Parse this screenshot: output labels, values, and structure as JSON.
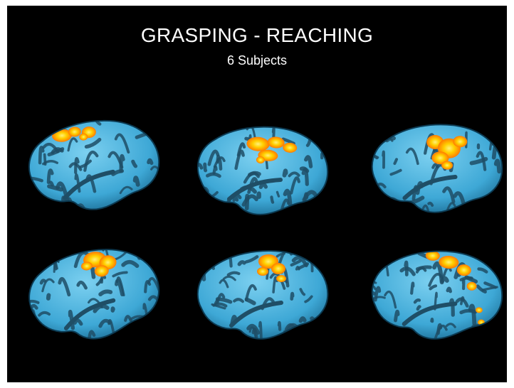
{
  "slide": {
    "title": "GRASPING - REACHING",
    "subtitle": "6 Subjects"
  },
  "colors": {
    "background": "#000000",
    "cortex": "#3ea8d6",
    "sulci": "#1f4e66",
    "activation_hot": "#ffd000",
    "activation_warm": "#ff7a00",
    "title_text": "#ffffff"
  },
  "brains": [
    {
      "id": "subject-1",
      "row": 1,
      "column": 1
    },
    {
      "id": "subject-2",
      "row": 1,
      "column": 2
    },
    {
      "id": "subject-3",
      "row": 1,
      "column": 3
    },
    {
      "id": "subject-4",
      "row": 2,
      "column": 1
    },
    {
      "id": "subject-5",
      "row": 2,
      "column": 2
    },
    {
      "id": "subject-6",
      "row": 2,
      "column": 3
    }
  ]
}
